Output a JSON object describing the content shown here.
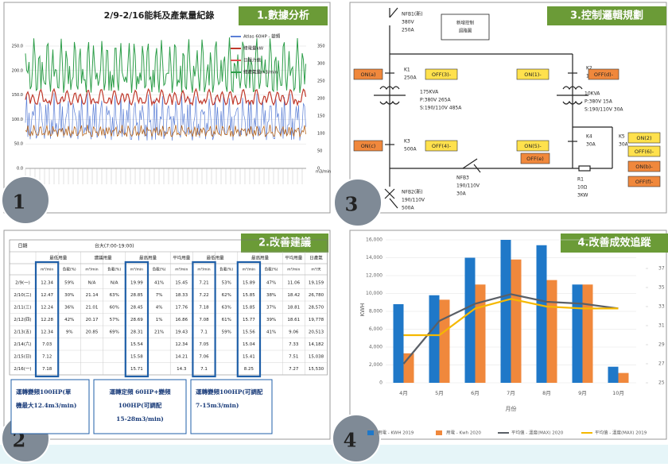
{
  "panels": {
    "analysis": {
      "tag": "1.數據分析",
      "number": "1",
      "chart_title": "2/9-2/16能耗及產氣量紀錄",
      "legend": [
        {
          "name": "Atlas 60HP - 變頻",
          "color": "#5b7fd6"
        },
        {
          "name": "總電量kW",
          "color": "#c0392b"
        },
        {
          "name": "日壓力值",
          "color": "#e05050"
        },
        {
          "name": "總產氣量m3/min",
          "color": "#2e9e4a"
        }
      ],
      "yticks": [
        {
          "value": 0,
          "label": "0.0"
        },
        {
          "value": 50,
          "label": "50.0"
        },
        {
          "value": 100,
          "label": "100.0"
        },
        {
          "value": 150,
          "label": "150.0"
        },
        {
          "value": 200,
          "label": "200.0"
        },
        {
          "value": 250,
          "label": "250.0"
        }
      ],
      "ylim": [
        0,
        250
      ],
      "y2ticks": [
        0,
        50,
        100,
        150,
        200,
        250,
        300,
        350
      ],
      "y2lim": [
        0,
        350
      ],
      "y2_unit": "m3/min"
    },
    "logic": {
      "tag": "3.控制邏輯規劃",
      "number": "3",
      "box": [
        "新增控制",
        "迴路圖"
      ],
      "labels": [
        [
          "NFB1(新)",
          "380V",
          "250A"
        ],
        [
          "K1",
          "250A"
        ],
        [
          "175KVA",
          "P:380V 265A",
          "S:190/110V 485A"
        ],
        [
          "K3",
          "500A"
        ],
        [
          "NFB2(新)",
          "190/110V",
          "500A"
        ],
        [
          "K2",
          "15A"
        ],
        [
          "10KVA",
          "P:380V 15A",
          "S:190/110V 30A"
        ],
        [
          "K4",
          "30A"
        ],
        [
          "K5",
          "30A"
        ],
        [
          "NFB3",
          "190/110V",
          "30A"
        ],
        [
          "R1",
          "10Ω",
          "3KW"
        ]
      ],
      "buttons": [
        {
          "label": "ON(a)",
          "color": "#f0883c"
        },
        {
          "label": "OFF(3)-",
          "color": "#ffe14d"
        },
        {
          "label": "ON(c)",
          "color": "#f0883c"
        },
        {
          "label": "OFF(4)-",
          "color": "#ffe14d"
        },
        {
          "label": "ON(1)-",
          "color": "#ffe14d"
        },
        {
          "label": "OFF(d)-",
          "color": "#f0883c"
        },
        {
          "label": "ON(5)-",
          "color": "#ffe14d"
        },
        {
          "label": "OFF(e)",
          "color": "#f0883c"
        },
        {
          "label": "ON(2)",
          "color": "#ffe14d"
        },
        {
          "label": "OFF(6)-",
          "color": "#ffe14d"
        },
        {
          "label": "ON(b)-",
          "color": "#f0883c"
        },
        {
          "label": "OFF(f)-",
          "color": "#f0883c"
        }
      ]
    },
    "suggest": {
      "tag": "2.改善建議",
      "number": "2",
      "table": {
        "date_header": "日期",
        "group_header": "台大(7:00-19:00)",
        "sub_headers": [
          "最低用量",
          "建議用量",
          "最高用量",
          "平均用量",
          "最低用量",
          "最高用量",
          "平均用量",
          "日產氣"
        ],
        "units": [
          "m³/min",
          "負載(%)",
          "m³/min",
          "負載(%)",
          "m³/min",
          "負載(%)",
          "m³/min",
          "m³/min",
          "負載(%)",
          "m³/min",
          "負載(%)",
          "m³/min",
          "m³/天"
        ],
        "rows": [
          [
            "2/9(一)",
            "12.34",
            "59%",
            "N/A",
            "N/A",
            "19.99",
            "41%",
            "15.45",
            "7.21",
            "53%",
            "15.89",
            "47%",
            "11.06",
            "19,159"
          ],
          [
            "2/10(二)",
            "12.47",
            "30%",
            "21.14",
            "63%",
            "28.85",
            "7%",
            "18.33",
            "7.22",
            "62%",
            "15.85",
            "38%",
            "18.42",
            "26,780"
          ],
          [
            "2/11(三)",
            "12.24",
            "36%",
            "21.01",
            "60%",
            "28.45",
            "4%",
            "17.76",
            "7.18",
            "63%",
            "15.85",
            "37%",
            "18.81",
            "28,570"
          ],
          [
            "2/12(四)",
            "12.28",
            "42%",
            "20.17",
            "57%",
            "28.69",
            "1%",
            "16.86",
            "7.08",
            "61%",
            "15.77",
            "39%",
            "18.61",
            "19,778"
          ],
          [
            "2/13(五)",
            "12.34",
            "9%",
            "20.85",
            "69%",
            "28.31",
            "21%",
            "19.43",
            "7.1",
            "59%",
            "15.56",
            "41%",
            "9.06",
            "20,513"
          ],
          [
            "2/14(六)",
            "7.03",
            null,
            null,
            null,
            "15.54",
            null,
            "12.34",
            "7.05",
            null,
            "15.04",
            null,
            "7.33",
            "14,182"
          ],
          [
            "2/15(日)",
            "7.12",
            null,
            null,
            null,
            "15.58",
            null,
            "14.21",
            "7.06",
            null,
            "15.41",
            null,
            "7.51",
            "15,038"
          ],
          [
            "2/16(一)",
            "7.18",
            null,
            null,
            null,
            "15.71",
            null,
            "14.3",
            "7.1",
            null,
            "8.25",
            null,
            "7.27",
            "15,530"
          ]
        ]
      },
      "notes": [
        [
          "運轉變頻100HP(單",
          "機最大12.4m3/min)"
        ],
        [
          "運轉定頻 60HP+變頻",
          "100HP(可調配",
          "15-28m3/min)"
        ],
        [
          "運轉變頻100HP(可調配",
          "7-15m3/min)"
        ]
      ]
    },
    "tracking": {
      "tag": "4.改善成效追蹤",
      "number": "4",
      "chart": {
        "type": "bar+line",
        "y_label": "KWH",
        "x_label": "月份",
        "categories": [
          "4月",
          "5月",
          "6月",
          "7月",
          "8月",
          "9月",
          "10月"
        ],
        "ylim": [
          0,
          16000
        ],
        "yticks": [
          {
            "value": 0,
            "label": "0"
          },
          {
            "value": 2000,
            "label": "2,000"
          },
          {
            "value": 4000,
            "label": "4,000"
          },
          {
            "value": 6000,
            "label": "6,000"
          },
          {
            "value": 8000,
            "label": "8,000"
          },
          {
            "value": 10000,
            "label": "10,000"
          },
          {
            "value": 12000,
            "label": "12,000"
          },
          {
            "value": 14000,
            "label": "14,000"
          },
          {
            "value": 16000,
            "label": "16,000"
          }
        ],
        "y2lim": [
          25,
          40
        ],
        "y2ticks": [
          25,
          27,
          29,
          31,
          33,
          35,
          37
        ],
        "series": [
          {
            "name": "用電 - KWH 2019",
            "type": "bar",
            "color": "#1f78c8",
            "values": [
              8800,
              9800,
              14000,
              16000,
              15400,
              11000,
              1800
            ]
          },
          {
            "name": "用電 - Kwh 2020",
            "type": "bar",
            "color": "#f0883c",
            "values": [
              3300,
              9300,
              11000,
              13800,
              11500,
              11000,
              1100
            ]
          },
          {
            "name": "平均值 - 溫度(MAX) 2020",
            "type": "line",
            "axis": "y2",
            "color": "#5a5f66",
            "values": [
              27,
              31.5,
              33.3,
              34.3,
              33.5,
              33.3,
              32.8
            ]
          },
          {
            "name": "平均值 - 溫度(MAX) 2019",
            "type": "line",
            "axis": "y2",
            "color": "#f5b800",
            "values": [
              30,
              30,
              32.8,
              33.8,
              33,
              32.8,
              32.8
            ]
          }
        ]
      }
    }
  }
}
